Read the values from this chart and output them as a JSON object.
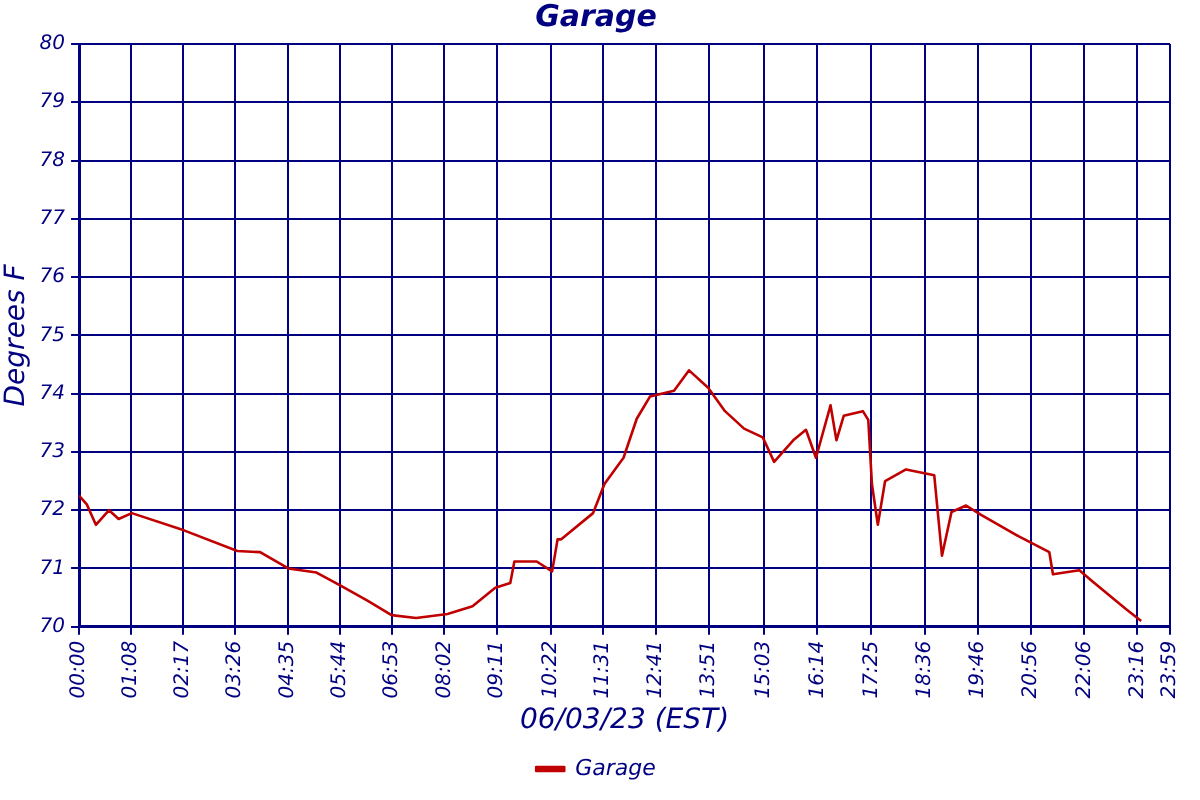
{
  "chart_data": {
    "type": "line",
    "title": "Garage",
    "xlabel": "06/03/23 (EST)",
    "ylabel": "Degrees F",
    "xlim": [
      0,
      23.983
    ],
    "xticks": [
      {
        "value": 0,
        "label": "00:00"
      },
      {
        "value": 1.133,
        "label": "01:08"
      },
      {
        "value": 2.283,
        "label": "02:17"
      },
      {
        "value": 3.433,
        "label": "03:26"
      },
      {
        "value": 4.583,
        "label": "04:35"
      },
      {
        "value": 5.733,
        "label": "05:44"
      },
      {
        "value": 6.883,
        "label": "06:53"
      },
      {
        "value": 8.033,
        "label": "08:02"
      },
      {
        "value": 9.183,
        "label": "09:11"
      },
      {
        "value": 10.367,
        "label": "10:22"
      },
      {
        "value": 11.517,
        "label": "11:31"
      },
      {
        "value": 12.683,
        "label": "12:41"
      },
      {
        "value": 13.85,
        "label": "13:51"
      },
      {
        "value": 15.05,
        "label": "15:03"
      },
      {
        "value": 16.233,
        "label": "16:14"
      },
      {
        "value": 17.417,
        "label": "17:25"
      },
      {
        "value": 18.6,
        "label": "18:36"
      },
      {
        "value": 19.767,
        "label": "19:46"
      },
      {
        "value": 20.933,
        "label": "20:56"
      },
      {
        "value": 22.1,
        "label": "22:06"
      },
      {
        "value": 23.267,
        "label": "23:16"
      },
      {
        "value": 23.983,
        "label": "23:59"
      }
    ],
    "ylim": [
      70,
      80
    ],
    "yticks": [
      70,
      71,
      72,
      73,
      74,
      75,
      76,
      77,
      78,
      79,
      80
    ],
    "grid": true,
    "legend": "bottom",
    "marker": "none",
    "line_style": "solid",
    "series": [
      {
        "name": "Garage",
        "color": "#c00000",
        "x": [
          0,
          0.17,
          0.37,
          0.66,
          0.87,
          1.16,
          2.32,
          3.48,
          3.98,
          4.6,
          5.22,
          5.76,
          6.34,
          6.87,
          7.41,
          8.1,
          8.65,
          9.15,
          9.48,
          9.57,
          10.06,
          10.4,
          10.52,
          10.6,
          11.3,
          11.55,
          11.97,
          12.26,
          12.55,
          13.08,
          13.41,
          13.83,
          14.2,
          14.62,
          15.03,
          15.28,
          15.7,
          15.98,
          16.2,
          16.52,
          16.65,
          16.81,
          17.23,
          17.35,
          17.43,
          17.56,
          17.72,
          18.18,
          18.8,
          18.97,
          19.18,
          19.5,
          19.83,
          20.66,
          21.33,
          21.41,
          21.99,
          22.32,
          23.02,
          23.35
        ],
        "values": [
          72.25,
          72.1,
          71.75,
          72.0,
          71.85,
          71.95,
          71.65,
          71.3,
          71.28,
          71.0,
          70.93,
          70.7,
          70.45,
          70.2,
          70.15,
          70.22,
          70.35,
          70.67,
          70.75,
          71.12,
          71.12,
          70.95,
          71.5,
          71.5,
          71.95,
          72.45,
          72.9,
          73.57,
          73.95,
          74.05,
          74.4,
          74.1,
          73.7,
          73.4,
          73.25,
          72.83,
          73.2,
          73.38,
          72.9,
          73.8,
          73.2,
          73.62,
          73.7,
          73.55,
          72.45,
          71.75,
          72.5,
          72.7,
          72.6,
          71.22,
          71.97,
          72.08,
          71.92,
          71.55,
          71.28,
          70.9,
          70.97,
          70.75,
          70.3,
          70.1
        ]
      }
    ]
  }
}
